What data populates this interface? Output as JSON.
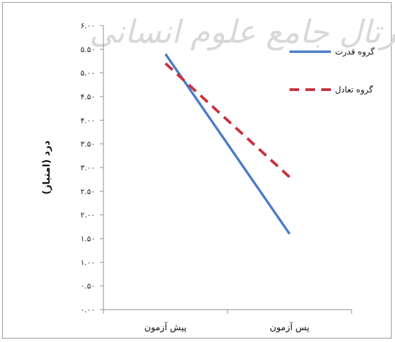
{
  "watermark": "پرتال جامع علوم انسانی",
  "chart_data": {
    "type": "line",
    "categories": [
      "پیش آزمون",
      "پس آزمون"
    ],
    "series": [
      {
        "name": "گروه قدرت",
        "values": [
          5.4,
          1.6
        ],
        "color": "#4a7cc8",
        "dash": "solid"
      },
      {
        "name": "گروه تعادل",
        "values": [
          5.2,
          2.8
        ],
        "color": "#c8333f",
        "dash": "dashed"
      }
    ],
    "ylabel": "درد (امتیاز)",
    "xlabel": "",
    "ylim": [
      0,
      6
    ],
    "yticks": [
      "۰.۰۰",
      "۰.۵۰",
      "۱.۰۰",
      "۱.۵۰",
      "۲.۰۰",
      "۲.۵۰",
      "۳.۰۰",
      "۳.۵۰",
      "۴.۰۰",
      "۴.۵۰",
      "۵.۰۰",
      "۵.۵۰",
      "۶.۰۰"
    ],
    "legend_position": "top-right",
    "grid": false
  }
}
